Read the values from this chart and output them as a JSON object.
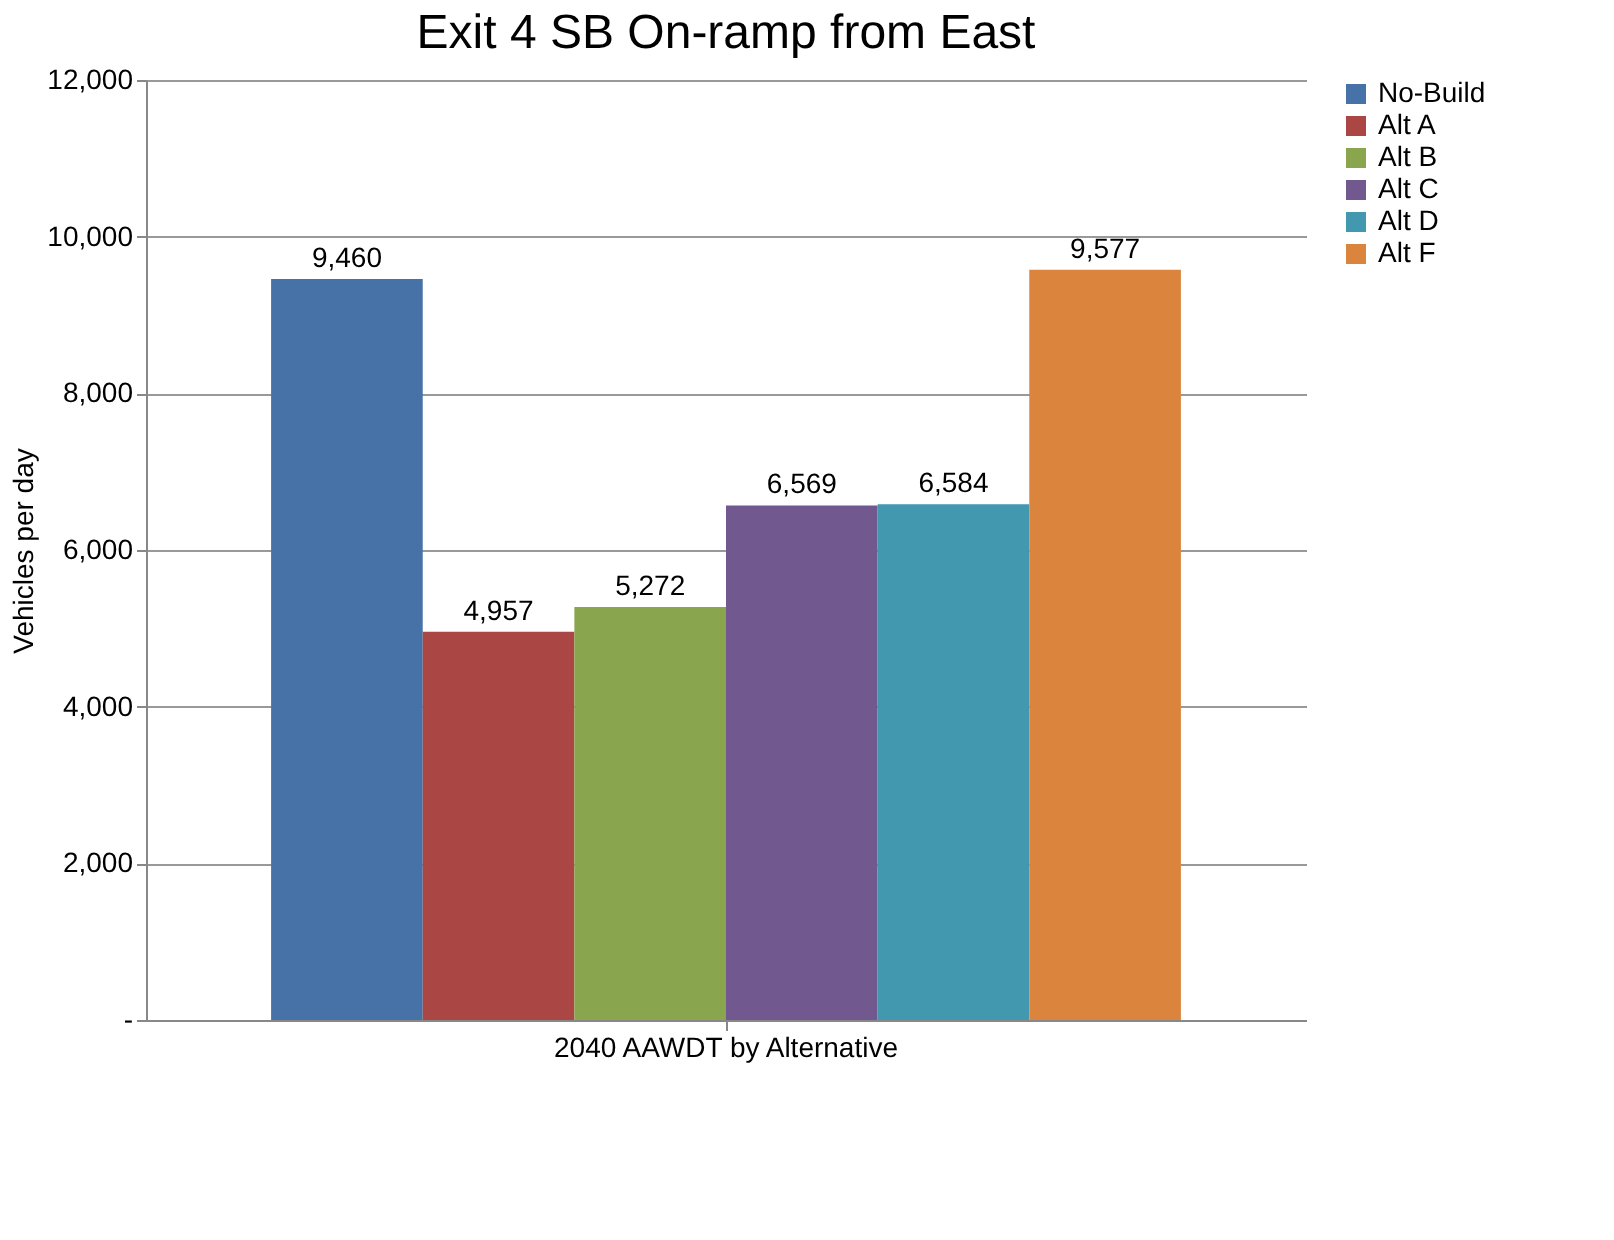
{
  "chart_data": {
    "type": "bar",
    "title": "Exit 4 SB On-ramp from East",
    "ylabel": "Vehicles per day",
    "categories": [
      "2040 AAWDT by Alternative"
    ],
    "series": [
      {
        "name": "No-Build",
        "color": "#4672a8",
        "values": [
          9460
        ],
        "value_labels": [
          "9,460"
        ]
      },
      {
        "name": "Alt A",
        "color": "#aa4643",
        "values": [
          4957
        ],
        "value_labels": [
          "4,957"
        ]
      },
      {
        "name": "Alt B",
        "color": "#89a54e",
        "values": [
          5272
        ],
        "value_labels": [
          "5,272"
        ]
      },
      {
        "name": "Alt C",
        "color": "#71588f",
        "values": [
          6569
        ],
        "value_labels": [
          "6,569"
        ]
      },
      {
        "name": "Alt D",
        "color": "#4198af",
        "values": [
          6584
        ],
        "value_labels": [
          "6,584"
        ]
      },
      {
        "name": "Alt F",
        "color": "#db843d",
        "values": [
          9577
        ],
        "value_labels": [
          "9,577"
        ]
      }
    ],
    "ylim": [
      0,
      12000
    ],
    "yticks": [
      {
        "value": 0,
        "label": "-"
      },
      {
        "value": 2000,
        "label": "2,000"
      },
      {
        "value": 4000,
        "label": "4,000"
      },
      {
        "value": 6000,
        "label": "6,000"
      },
      {
        "value": 8000,
        "label": "8,000"
      },
      {
        "value": 10000,
        "label": "10,000"
      },
      {
        "value": 12000,
        "label": "12,000"
      }
    ],
    "grid": "y",
    "legend": "right"
  }
}
